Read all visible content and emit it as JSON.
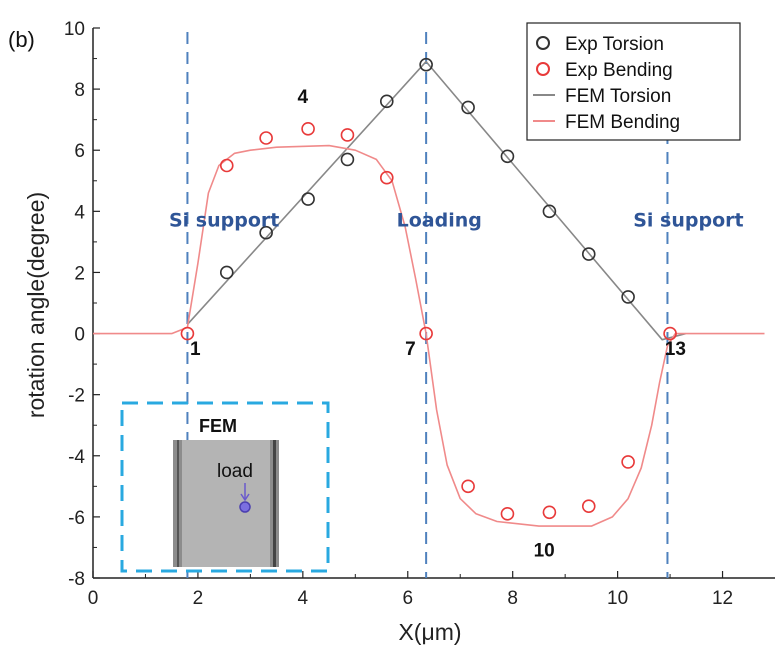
{
  "chart_data": {
    "type": "line",
    "panel_label": "(b)",
    "xlabel": "X(μm)",
    "ylabel": "rotation angle(degree)",
    "xlim": [
      0,
      13
    ],
    "ylim": [
      -8,
      10
    ],
    "xticks": [
      0,
      2,
      4,
      6,
      8,
      10,
      12
    ],
    "yticks": [
      -8,
      -6,
      -4,
      -2,
      0,
      2,
      4,
      6,
      8,
      10
    ],
    "grid": false,
    "legend_position": "top-right",
    "legend": [
      {
        "label": "Exp Torsion",
        "kind": "marker",
        "color": "#333333"
      },
      {
        "label": "Exp Bending",
        "kind": "marker",
        "color": "#e83a3a"
      },
      {
        "label": "FEM Torsion",
        "kind": "line",
        "color": "#888888"
      },
      {
        "label": "FEM Bending",
        "kind": "line",
        "color": "#f08a8a"
      }
    ],
    "series": [
      {
        "name": "Exp Torsion",
        "style": "marker",
        "color": "#333333",
        "x": [
          2.55,
          3.3,
          4.1,
          4.85,
          5.6,
          6.35,
          7.15,
          7.9,
          8.7,
          9.45,
          10.2
        ],
        "y": [
          2.0,
          3.3,
          4.4,
          5.7,
          7.6,
          8.8,
          7.4,
          5.8,
          4.0,
          2.6,
          1.2
        ]
      },
      {
        "name": "Exp Bending",
        "style": "marker",
        "color": "#e83a3a",
        "x": [
          1.8,
          2.55,
          3.3,
          4.1,
          4.85,
          5.6,
          6.35,
          7.15,
          7.9,
          8.7,
          9.45,
          10.2,
          11.0
        ],
        "y": [
          0.0,
          5.5,
          6.4,
          6.7,
          6.5,
          5.1,
          0.0,
          -5.0,
          -5.9,
          -5.85,
          -5.65,
          -4.2,
          0.0
        ]
      },
      {
        "name": "FEM Torsion",
        "style": "line",
        "color": "#888888",
        "x": [
          1.8,
          6.35,
          10.85,
          11.3
        ],
        "y": [
          0.3,
          8.9,
          -0.2,
          0.0
        ]
      },
      {
        "name": "FEM Bending",
        "style": "line",
        "color": "#f08a8a",
        "x": [
          0,
          1.5,
          1.8,
          2.0,
          2.2,
          2.4,
          2.7,
          3.0,
          3.5,
          4.5,
          5.0,
          5.4,
          5.7,
          5.95,
          6.15,
          6.35,
          6.55,
          6.75,
          7.0,
          7.3,
          7.7,
          8.5,
          9.5,
          9.9,
          10.2,
          10.45,
          10.65,
          10.8,
          10.95,
          11.1,
          11.5,
          12.8
        ],
        "y": [
          0,
          0,
          0.2,
          2.3,
          4.6,
          5.5,
          5.9,
          6.0,
          6.1,
          6.15,
          6.0,
          5.7,
          5.0,
          3.5,
          1.8,
          0.0,
          -2.5,
          -4.3,
          -5.4,
          -5.9,
          -6.15,
          -6.3,
          -6.3,
          -6.0,
          -5.4,
          -4.4,
          -3.0,
          -1.6,
          -0.4,
          0.0,
          0.0,
          0.0
        ]
      }
    ],
    "vertical_lines": [
      1.8,
      6.35,
      10.95
    ],
    "region_labels": [
      {
        "text": "Si support",
        "x": 2.5,
        "y": 3.5
      },
      {
        "text": "Loading",
        "x": 6.6,
        "y": 3.5
      },
      {
        "text": "Si support",
        "x": 11.35,
        "y": 3.5
      }
    ],
    "point_labels": [
      {
        "text": "1",
        "x": 1.95,
        "y": -0.7
      },
      {
        "text": "4",
        "x": 4.0,
        "y": 7.55
      },
      {
        "text": "7",
        "x": 6.05,
        "y": -0.7
      },
      {
        "text": "13",
        "x": 11.1,
        "y": -0.7
      },
      {
        "text": "10",
        "x": 8.6,
        "y": -7.3
      }
    ],
    "inset": {
      "title": "FEM",
      "label": "load",
      "border_color": "#29a9e0",
      "fill_color": "#b4b4b4",
      "marker_color": "#6a5acd"
    }
  }
}
